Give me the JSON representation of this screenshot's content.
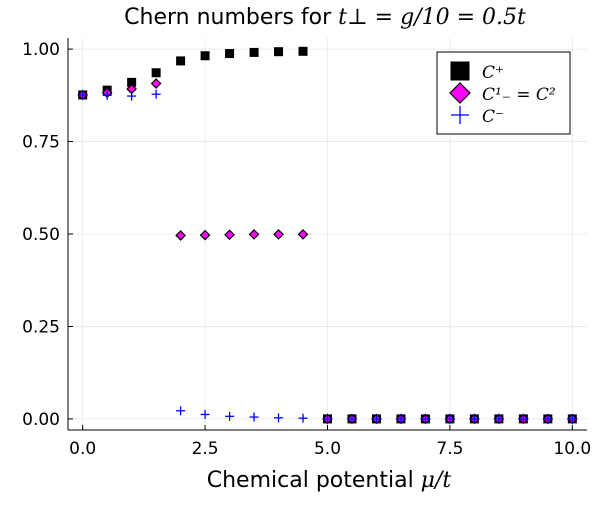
{
  "chart_data": {
    "type": "scatter",
    "title_prefix": "Chern numbers for ",
    "title_math": "t⊥ = g/10 = 0.5t",
    "xlabel_prefix": "Chemical potential ",
    "xlabel_math": "μ/t",
    "ylabel": "",
    "xlim": [
      -0.3,
      10.3
    ],
    "ylim": [
      -0.03,
      1.03
    ],
    "grid": true,
    "legend_position": "top-right",
    "x_ticks": [
      0,
      2.5,
      5,
      7.5,
      10
    ],
    "x_tick_labels": [
      "0.0",
      "2.5",
      "5.0",
      "7.5",
      "10.0"
    ],
    "y_ticks": [
      0,
      0.25,
      0.5,
      0.75,
      1.0
    ],
    "y_tick_labels": [
      "0.00",
      "0.25",
      "0.50",
      "0.75",
      "1.00"
    ],
    "x": [
      0,
      0.5,
      1.0,
      1.5,
      2.0,
      2.5,
      3.0,
      3.5,
      4.0,
      4.5,
      5.0,
      5.5,
      6.0,
      6.5,
      7.0,
      7.5,
      8.0,
      8.5,
      9.0,
      9.5,
      10.0
    ],
    "series": [
      {
        "name": "C⁺",
        "marker": "square",
        "color": "#000000",
        "values": [
          0.876,
          0.889,
          0.91,
          0.936,
          0.968,
          0.982,
          0.988,
          0.991,
          0.993,
          0.994,
          0,
          0,
          0,
          0,
          0,
          0,
          0,
          0,
          0,
          0,
          0
        ]
      },
      {
        "name": "C¹₋ = C²",
        "marker": "diamond",
        "color": "#ff00ff",
        "values": [
          0.876,
          0.882,
          0.892,
          0.907,
          0.496,
          0.497,
          0.498,
          0.499,
          0.499,
          0.499,
          0,
          0,
          0,
          0,
          0,
          0,
          0,
          0,
          0,
          0,
          0
        ]
      },
      {
        "name": "C⁻",
        "marker": "cross",
        "color": "#0000ff",
        "values": [
          0.876,
          0.875,
          0.873,
          0.878,
          0.022,
          0.012,
          0.007,
          0.005,
          0.003,
          0.002,
          0,
          0,
          0,
          0,
          0,
          0,
          0,
          0,
          0,
          0,
          0
        ]
      }
    ]
  }
}
